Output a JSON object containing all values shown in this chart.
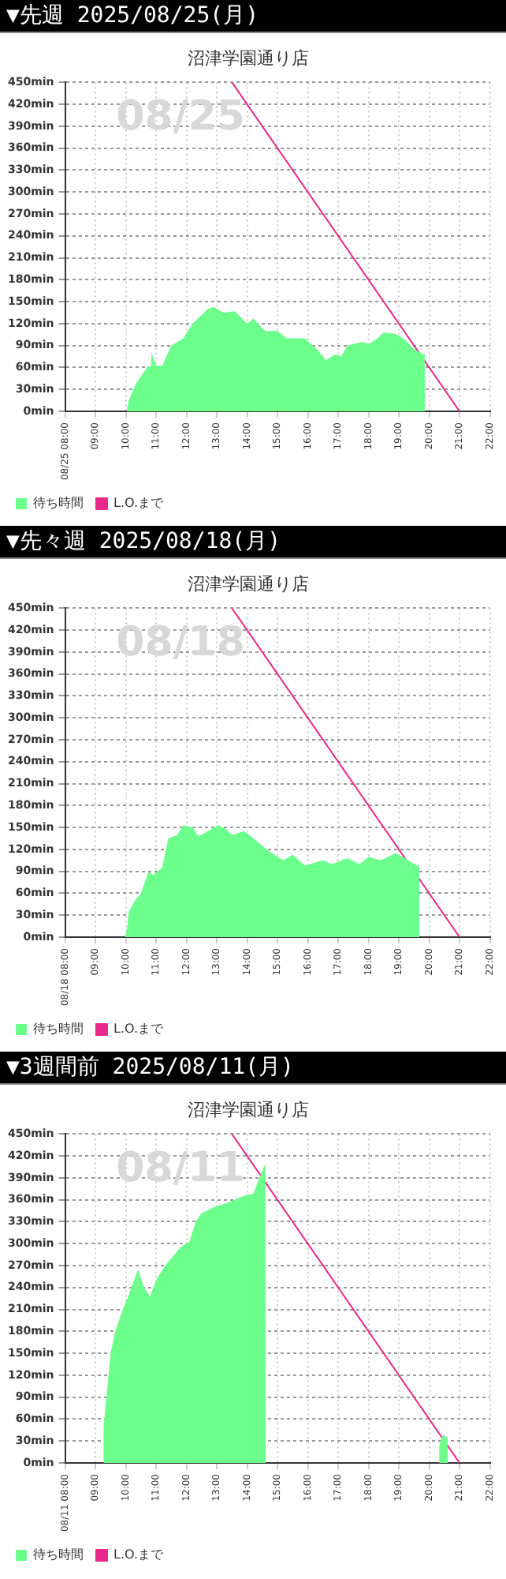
{
  "chart_data": [
    {
      "type": "area",
      "title": "▼先週 2025/08/25(月)",
      "subtitle": "沼津学園通り店",
      "annotations": [
        "08/25"
      ],
      "legend": "bottom",
      "grid": true,
      "marker": "none",
      "xlim": [
        8,
        22
      ],
      "ylim": [
        0,
        450
      ],
      "xticks": [
        {
          "value": 8,
          "label": "08/25 08:00"
        },
        {
          "value": 9,
          "label": "09:00"
        },
        {
          "value": 10,
          "label": "10:00"
        },
        {
          "value": 11,
          "label": "11:00"
        },
        {
          "value": 12,
          "label": "12:00"
        },
        {
          "value": 13,
          "label": "13:00"
        },
        {
          "value": 14,
          "label": "14:00"
        },
        {
          "value": 15,
          "label": "15:00"
        },
        {
          "value": 16,
          "label": "16:00"
        },
        {
          "value": 17,
          "label": "17:00"
        },
        {
          "value": 18,
          "label": "18:00"
        },
        {
          "value": 19,
          "label": "19:00"
        },
        {
          "value": 20,
          "label": "20:00"
        },
        {
          "value": 21,
          "label": "21:00"
        },
        {
          "value": 22,
          "label": "22:00"
        }
      ],
      "yticks": [
        {
          "value": 0,
          "label": "0min"
        },
        {
          "value": 30,
          "label": "30min"
        },
        {
          "value": 60,
          "label": "60min"
        },
        {
          "value": 90,
          "label": "90min"
        },
        {
          "value": 120,
          "label": "120min"
        },
        {
          "value": 150,
          "label": "150min"
        },
        {
          "value": 180,
          "label": "180min"
        },
        {
          "value": 210,
          "label": "210min"
        },
        {
          "value": 240,
          "label": "240min"
        },
        {
          "value": 270,
          "label": "270min"
        },
        {
          "value": 300,
          "label": "300min"
        },
        {
          "value": 330,
          "label": "330min"
        },
        {
          "value": 360,
          "label": "360min"
        },
        {
          "value": 390,
          "label": "390min"
        },
        {
          "value": 420,
          "label": "420min"
        },
        {
          "value": 450,
          "label": "450min"
        }
      ],
      "series": [
        {
          "name": "待ち時間",
          "color": "#6cff8c",
          "x": [
            10.03,
            10.1,
            10.3,
            10.5,
            10.7,
            10.83,
            10.85,
            11.0,
            11.2,
            11.5,
            11.9,
            12.2,
            12.5,
            12.7,
            12.9,
            13.2,
            13.6,
            14.0,
            14.2,
            14.6,
            15.0,
            15.3,
            15.9,
            16.3,
            16.6,
            16.9,
            17.1,
            17.3,
            17.8,
            18.0,
            18.3,
            18.5,
            18.9,
            19.2,
            19.5,
            19.8,
            19.85,
            19.86
          ],
          "values": [
            0,
            15,
            35,
            48,
            60,
            62,
            80,
            63,
            62,
            90,
            100,
            120,
            132,
            140,
            143,
            135,
            137,
            120,
            127,
            110,
            110,
            100,
            100,
            85,
            70,
            78,
            75,
            90,
            95,
            92,
            100,
            108,
            106,
            98,
            85,
            78,
            80,
            0
          ]
        },
        {
          "name": "L.O.まで",
          "type": "line",
          "color": "#e8288a",
          "x": [
            13.5,
            21
          ],
          "values": [
            450,
            0
          ]
        }
      ]
    },
    {
      "type": "area",
      "title": "▼先々週 2025/08/18(月)",
      "subtitle": "沼津学園通り店",
      "annotations": [
        "08/18"
      ],
      "legend": "bottom",
      "grid": true,
      "marker": "none",
      "xlim": [
        8,
        22
      ],
      "ylim": [
        0,
        450
      ],
      "xticks": [
        {
          "value": 8,
          "label": "08/18 08:00"
        },
        {
          "value": 9,
          "label": "09:00"
        },
        {
          "value": 10,
          "label": "10:00"
        },
        {
          "value": 11,
          "label": "11:00"
        },
        {
          "value": 12,
          "label": "12:00"
        },
        {
          "value": 13,
          "label": "13:00"
        },
        {
          "value": 14,
          "label": "14:00"
        },
        {
          "value": 15,
          "label": "15:00"
        },
        {
          "value": 16,
          "label": "16:00"
        },
        {
          "value": 17,
          "label": "17:00"
        },
        {
          "value": 18,
          "label": "18:00"
        },
        {
          "value": 19,
          "label": "19:00"
        },
        {
          "value": 20,
          "label": "20:00"
        },
        {
          "value": 21,
          "label": "21:00"
        },
        {
          "value": 22,
          "label": "22:00"
        }
      ],
      "yticks": [
        {
          "value": 0,
          "label": "0min"
        },
        {
          "value": 30,
          "label": "30min"
        },
        {
          "value": 60,
          "label": "60min"
        },
        {
          "value": 90,
          "label": "90min"
        },
        {
          "value": 120,
          "label": "120min"
        },
        {
          "value": 150,
          "label": "150min"
        },
        {
          "value": 180,
          "label": "180min"
        },
        {
          "value": 210,
          "label": "210min"
        },
        {
          "value": 240,
          "label": "240min"
        },
        {
          "value": 270,
          "label": "270min"
        },
        {
          "value": 300,
          "label": "300min"
        },
        {
          "value": 330,
          "label": "330min"
        },
        {
          "value": 360,
          "label": "360min"
        },
        {
          "value": 390,
          "label": "390min"
        },
        {
          "value": 420,
          "label": "420min"
        },
        {
          "value": 450,
          "label": "450min"
        }
      ],
      "series": [
        {
          "name": "待ち時間",
          "color": "#6cff8c",
          "x": [
            9.98,
            10.05,
            10.1,
            10.3,
            10.5,
            10.75,
            10.9,
            11.2,
            11.4,
            11.7,
            11.9,
            12.2,
            12.4,
            12.7,
            13.05,
            13.3,
            13.5,
            13.9,
            14.3,
            14.7,
            15.2,
            15.5,
            15.9,
            16.5,
            16.8,
            17.3,
            17.7,
            18.0,
            18.4,
            18.9,
            19.2,
            19.5,
            19.6,
            19.67,
            19.68
          ],
          "values": [
            0,
            15,
            35,
            50,
            60,
            90,
            85,
            95,
            135,
            140,
            153,
            150,
            138,
            145,
            153,
            148,
            140,
            145,
            132,
            118,
            105,
            113,
            98,
            105,
            100,
            108,
            100,
            110,
            105,
            115,
            108,
            100,
            97,
            100,
            0
          ]
        },
        {
          "name": "L.O.まで",
          "type": "line",
          "color": "#e8288a",
          "x": [
            13.5,
            21
          ],
          "values": [
            450,
            0
          ]
        }
      ]
    },
    {
      "type": "area",
      "title": "▼3週間前 2025/08/11(月)",
      "subtitle": "沼津学園通り店",
      "annotations": [
        "08/11"
      ],
      "legend": "bottom",
      "grid": true,
      "marker": "none",
      "xlim": [
        8,
        22
      ],
      "ylim": [
        0,
        450
      ],
      "xticks": [
        {
          "value": 8,
          "label": "08/11 08:00"
        },
        {
          "value": 9,
          "label": "09:00"
        },
        {
          "value": 10,
          "label": "10:00"
        },
        {
          "value": 11,
          "label": "11:00"
        },
        {
          "value": 12,
          "label": "12:00"
        },
        {
          "value": 13,
          "label": "13:00"
        },
        {
          "value": 14,
          "label": "14:00"
        },
        {
          "value": 15,
          "label": "15:00"
        },
        {
          "value": 16,
          "label": "16:00"
        },
        {
          "value": 17,
          "label": "17:00"
        },
        {
          "value": 18,
          "label": "18:00"
        },
        {
          "value": 19,
          "label": "19:00"
        },
        {
          "value": 20,
          "label": "20:00"
        },
        {
          "value": 21,
          "label": "21:00"
        },
        {
          "value": 22,
          "label": "22:00"
        }
      ],
      "yticks": [
        {
          "value": 0,
          "label": "0min"
        },
        {
          "value": 30,
          "label": "30min"
        },
        {
          "value": 60,
          "label": "60min"
        },
        {
          "value": 90,
          "label": "90min"
        },
        {
          "value": 120,
          "label": "120min"
        },
        {
          "value": 150,
          "label": "150min"
        },
        {
          "value": 180,
          "label": "180min"
        },
        {
          "value": 210,
          "label": "210min"
        },
        {
          "value": 240,
          "label": "240min"
        },
        {
          "value": 270,
          "label": "270min"
        },
        {
          "value": 300,
          "label": "300min"
        },
        {
          "value": 330,
          "label": "330min"
        },
        {
          "value": 360,
          "label": "360min"
        },
        {
          "value": 390,
          "label": "390min"
        },
        {
          "value": 420,
          "label": "420min"
        },
        {
          "value": 450,
          "label": "450min"
        }
      ],
      "series": [
        {
          "name": "待ち時間",
          "color": "#6cff8c",
          "x": [
            9.25,
            9.27,
            9.35,
            9.5,
            9.65,
            9.9,
            10.1,
            10.4,
            10.6,
            10.8,
            11.0,
            11.3,
            11.6,
            11.8,
            12.1,
            12.3,
            12.5,
            12.9,
            13.3,
            13.7,
            14.0,
            14.2,
            14.4,
            14.55,
            14.6,
            14.61,
            20.32,
            20.33,
            20.45,
            20.6,
            20.62
          ],
          "values": [
            0,
            50,
            85,
            150,
            180,
            210,
            230,
            265,
            240,
            228,
            250,
            270,
            285,
            295,
            303,
            330,
            342,
            350,
            355,
            362,
            367,
            368,
            390,
            405,
            408,
            0,
            0,
            25,
            38,
            35,
            0
          ]
        },
        {
          "name": "L.O.まで",
          "type": "line",
          "color": "#e8288a",
          "x": [
            13.5,
            21
          ],
          "values": [
            450,
            0
          ]
        }
      ]
    }
  ]
}
